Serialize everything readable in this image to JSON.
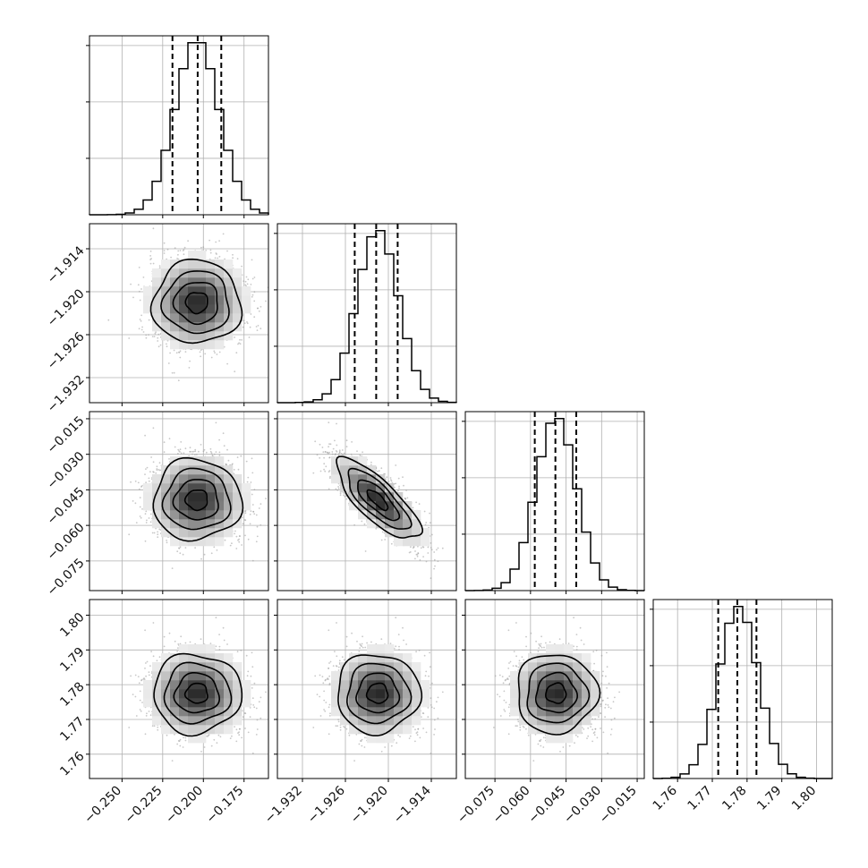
{
  "chart_data": {
    "type": "corner",
    "grid": true,
    "params": [
      {
        "range": [
          -0.27,
          -0.16
        ],
        "ticks": [
          -0.25,
          -0.225,
          -0.2,
          -0.175
        ],
        "tick_labels": [
          "−0.250",
          "−0.225",
          "−0.200",
          "−0.175"
        ],
        "mean": -0.204,
        "sigma": 0.0135,
        "quantiles": [
          -0.219,
          -0.2035,
          -0.189
        ]
      },
      {
        "range": [
          -1.9355,
          -1.9105
        ],
        "ticks": [
          -1.932,
          -1.926,
          -1.92,
          -1.914
        ],
        "tick_labels": [
          "−1.932",
          "−1.926",
          "−1.920",
          "−1.914"
        ],
        "mean": -1.9215,
        "sigma": 0.0029,
        "quantiles": [
          -1.9247,
          -1.9217,
          -1.9187
        ]
      },
      {
        "range": [
          -0.0875,
          -0.012
        ],
        "ticks": [
          -0.075,
          -0.06,
          -0.045,
          -0.03,
          -0.015
        ],
        "tick_labels": [
          "−0.075",
          "−0.060",
          "−0.045",
          "−0.030",
          "−0.015"
        ],
        "mean": -0.0492,
        "sigma": 0.0085,
        "quantiles": [
          -0.0582,
          -0.0495,
          -0.0407
        ]
      },
      {
        "range": [
          1.753,
          1.8045
        ],
        "ticks": [
          1.76,
          1.77,
          1.78,
          1.79,
          1.8
        ],
        "tick_labels": [
          "1.76",
          "1.77",
          "1.78",
          "1.79",
          "1.80"
        ],
        "mean": 1.7775,
        "sigma": 0.0057,
        "quantiles": [
          1.7717,
          1.7772,
          1.7827
        ]
      }
    ],
    "correlations": [
      {
        "i": 2,
        "j": 1,
        "rho": -0.78
      },
      {
        "i": 1,
        "j": 0,
        "rho": 0.0
      },
      {
        "i": 2,
        "j": 0,
        "rho": 0.0
      },
      {
        "i": 3,
        "j": 0,
        "rho": 0.0
      },
      {
        "i": 3,
        "j": 1,
        "rho": 0.0
      },
      {
        "i": 3,
        "j": 2,
        "rho": 0.0
      }
    ],
    "diagonal_y_ticks_count": 3,
    "colors": {
      "density": "#000000",
      "scatter": "#9a9a9a",
      "grid": "#b0b0b0",
      "axes": "#000000"
    }
  }
}
